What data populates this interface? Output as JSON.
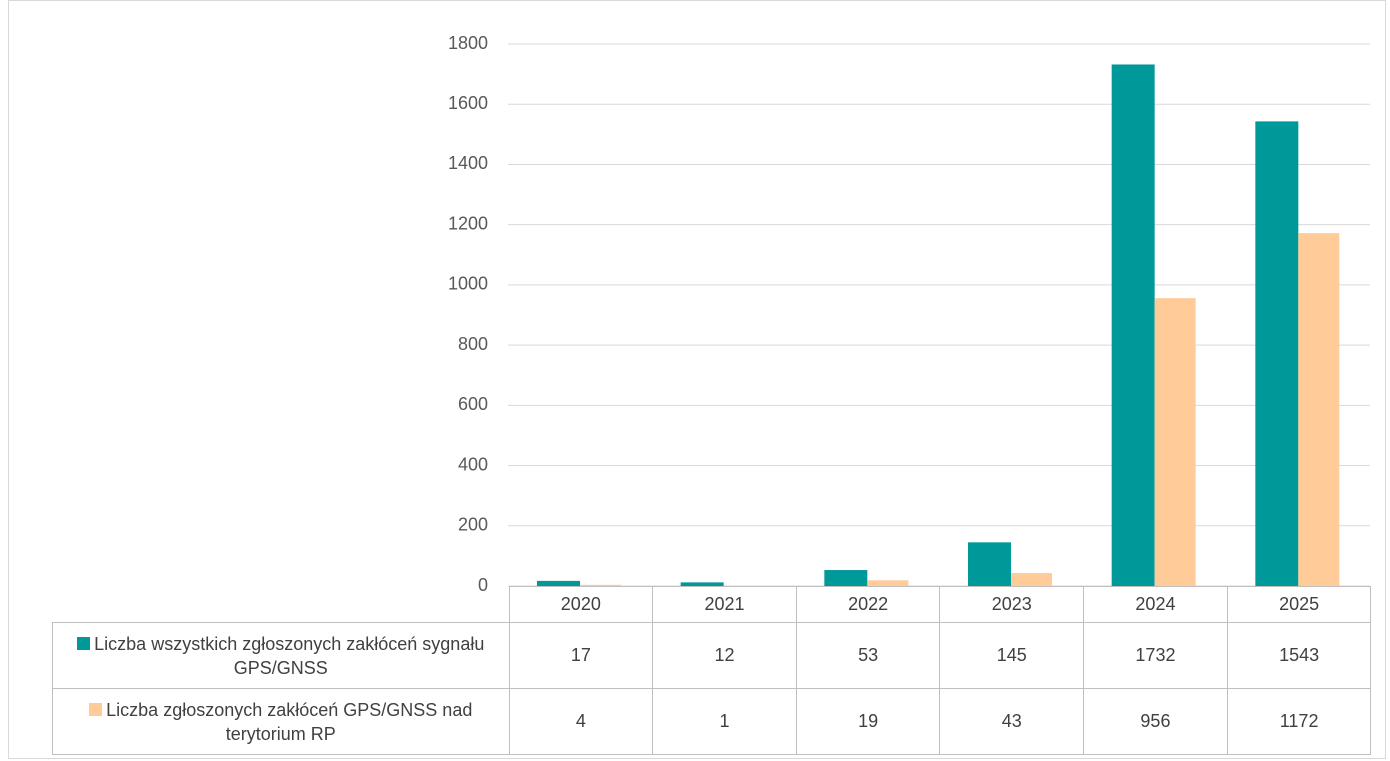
{
  "chart_data": {
    "type": "bar",
    "categories": [
      "2020",
      "2021",
      "2022",
      "2023",
      "2024",
      "2025"
    ],
    "series": [
      {
        "name": "Liczba wszystkich zgłoszonych zakłóceń sygnału GPS/GNSS",
        "color": "#009999",
        "values": [
          17,
          12,
          53,
          145,
          1732,
          1543
        ]
      },
      {
        "name": "Liczba zgłoszonych zakłóceń GPS/GNSS nad terytorium RP",
        "color": "#ffcc99",
        "values": [
          4,
          1,
          19,
          43,
          956,
          1172
        ]
      }
    ],
    "ylim": [
      0,
      1800
    ],
    "yticks": [
      0,
      200,
      400,
      600,
      800,
      1000,
      1200,
      1400,
      1600,
      1800
    ],
    "grid": true
  }
}
